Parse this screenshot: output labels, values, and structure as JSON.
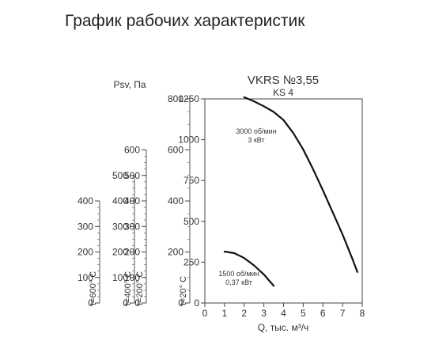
{
  "page": {
    "title": "График рабочих характеристик"
  },
  "chart_data": {
    "type": "line",
    "title": "VKRS №3,55",
    "subtitle": "KS 4",
    "xlabel": "Q, тыс. м³/ч",
    "ylabel": "Psv, Па",
    "xlim": [
      0,
      8
    ],
    "ylim": [
      0,
      1250
    ],
    "x_ticks": [
      0,
      1,
      2,
      3,
      4,
      5,
      6,
      7,
      8
    ],
    "y_ticks": [
      0,
      250,
      500,
      750,
      1000,
      1250
    ],
    "grid": false,
    "series": [
      {
        "name": "3000 об/мин 3 кВт",
        "label_lines": [
          "3000 об/мин",
          "3 кВт"
        ],
        "x": [
          2.0,
          2.5,
          3.0,
          3.5,
          4.0,
          4.5,
          5.0,
          5.5,
          6.0,
          6.5,
          7.0,
          7.5,
          7.75
        ],
        "y": [
          1260,
          1235,
          1205,
          1170,
          1120,
          1040,
          940,
          820,
          690,
          555,
          420,
          270,
          190
        ]
      },
      {
        "name": "1500 об/мин 0,37 кВт",
        "label_lines": [
          "1500 об/мин",
          "0,37 кВт"
        ],
        "x": [
          1.0,
          1.5,
          2.0,
          2.5,
          3.0,
          3.5
        ],
        "y": [
          315,
          305,
          275,
          230,
          175,
          105
        ]
      }
    ],
    "pressure_scales": [
      {
        "name": "t=20° C",
        "max": 800,
        "ticks": [
          0,
          200,
          400,
          600,
          800
        ]
      },
      {
        "name": "t=200° C",
        "max": 800,
        "ticks": [
          0,
          100,
          200,
          300,
          400,
          500,
          600
        ]
      },
      {
        "name": "t=400° C",
        "max": 800,
        "ticks": [
          0,
          100,
          200,
          300,
          400,
          500
        ]
      },
      {
        "name": "t=600° C",
        "max": 800,
        "ticks": [
          0,
          100,
          200,
          300,
          400
        ]
      }
    ]
  }
}
